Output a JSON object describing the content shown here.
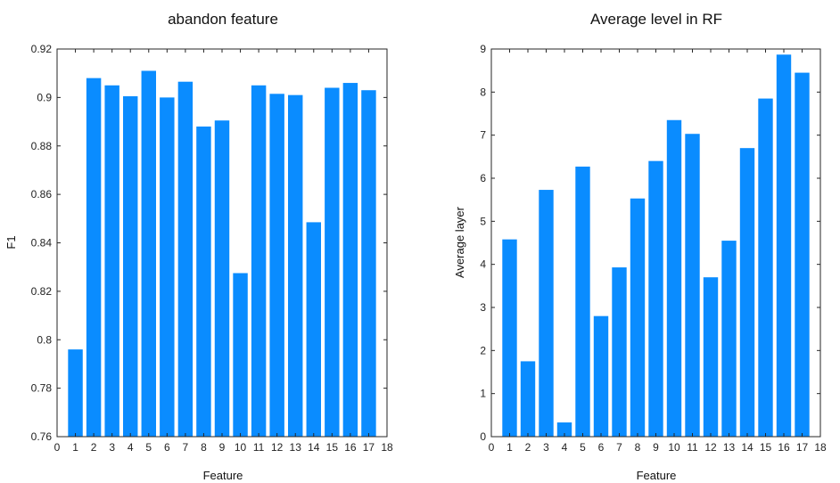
{
  "chart_data": [
    {
      "type": "bar",
      "title": "abandon feature",
      "xlabel": "Feature",
      "ylabel": "F1",
      "categories": [
        1,
        2,
        3,
        4,
        5,
        6,
        7,
        8,
        9,
        10,
        11,
        12,
        13,
        14,
        15,
        16,
        17
      ],
      "values": [
        0.796,
        0.908,
        0.905,
        0.9005,
        0.911,
        0.9,
        0.9065,
        0.888,
        0.8905,
        0.8275,
        0.905,
        0.9015,
        0.901,
        0.8485,
        0.904,
        0.906,
        0.903
      ],
      "xlim": [
        0,
        18
      ],
      "ylim": [
        0.76,
        0.92
      ],
      "xticks": [
        0,
        1,
        2,
        3,
        4,
        5,
        6,
        7,
        8,
        9,
        10,
        11,
        12,
        13,
        14,
        15,
        16,
        17,
        18
      ],
      "yticks": [
        "0.76",
        "0.78",
        "0.8",
        "0.82",
        "0.84",
        "0.86",
        "0.88",
        "0.9",
        "0.92"
      ],
      "grid": false,
      "color": "#0a8cff"
    },
    {
      "type": "bar",
      "title": "Average level in RF",
      "xlabel": "Feature",
      "ylabel": "Average layer",
      "categories": [
        1,
        2,
        3,
        4,
        5,
        6,
        7,
        8,
        9,
        10,
        11,
        12,
        13,
        14,
        15,
        16,
        17
      ],
      "values": [
        4.58,
        1.75,
        5.73,
        0.33,
        6.27,
        2.8,
        3.93,
        5.53,
        6.4,
        7.35,
        7.03,
        3.7,
        4.55,
        6.7,
        7.85,
        8.87,
        8.45
      ],
      "xlim": [
        0,
        18
      ],
      "ylim": [
        0,
        9
      ],
      "xticks": [
        0,
        1,
        2,
        3,
        4,
        5,
        6,
        7,
        8,
        9,
        10,
        11,
        12,
        13,
        14,
        15,
        16,
        17,
        18
      ],
      "yticks": [
        "0",
        "1",
        "2",
        "3",
        "4",
        "5",
        "6",
        "7",
        "8",
        "9"
      ],
      "grid": false,
      "color": "#0a8cff"
    }
  ]
}
